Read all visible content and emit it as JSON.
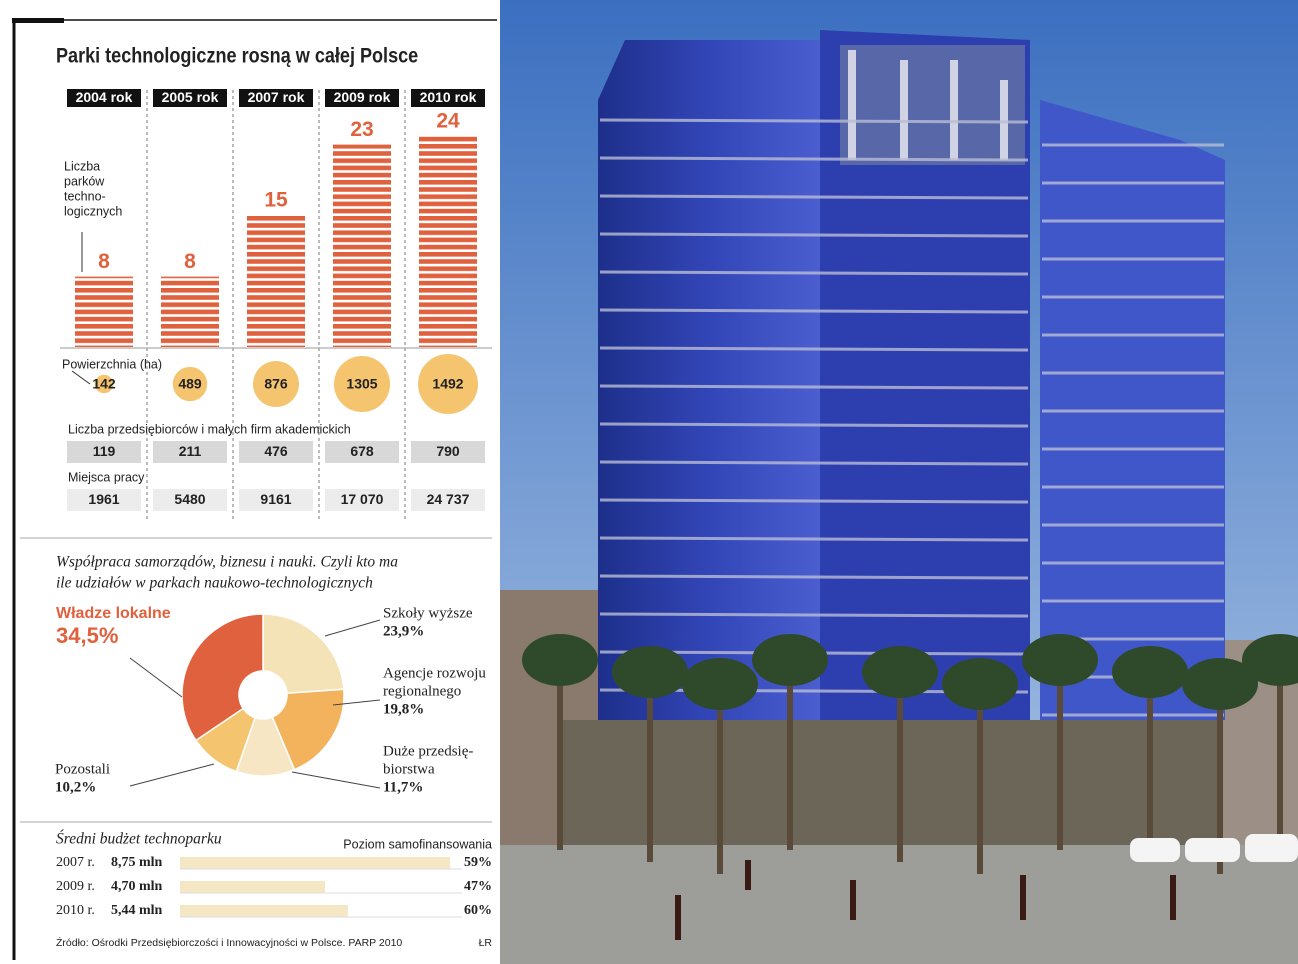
{
  "title": "Parki technologiczne rosną w całej Polsce",
  "chart_data": [
    {
      "type": "bar",
      "categories": [
        "2004 rok",
        "2005 rok",
        "2007 rok",
        "2009 rok",
        "2010 rok"
      ],
      "values": [
        8,
        8,
        15,
        23,
        24
      ],
      "color": "#e0613e",
      "annotation": [
        "Liczba",
        "parków",
        "techno-",
        "logicznych"
      ]
    },
    {
      "type": "pie",
      "subtitle": [
        "Współpraca samorządów, biznesu i nauki. Czyli kto ma",
        "ile udziałów w parkach naukowo-technologicznych"
      ],
      "categories": [
        [
          "Szkoły wyższe"
        ],
        [
          "Agencje rozwoju",
          "regionalnego"
        ],
        [
          "Duże przedsię-",
          "biorstwa"
        ],
        [
          "Pozostali"
        ],
        [
          "Władze lokalne"
        ]
      ],
      "values": [
        23.9,
        19.8,
        11.7,
        10.2,
        34.5
      ],
      "value_labels": [
        "23,9%",
        "19,8%",
        "11,7%",
        "10,2%",
        "34,5%"
      ],
      "colors": [
        "#f5e3b8",
        "#f2b35c",
        "#f7e6c4",
        "#f5c46f",
        "#e0613e"
      ]
    },
    {
      "type": "hbar",
      "title": "Średni budżet technoparku",
      "secondary_label": "Poziom samofinansowania",
      "categories": [
        "2007 r.",
        "2009 r.",
        "2010 r."
      ],
      "values": [
        8.75,
        4.7,
        5.44
      ],
      "value_labels": [
        "8,75 mln",
        "4,70 mln",
        "5,44 mln"
      ],
      "percent": [
        59,
        47,
        60
      ],
      "percent_labels": [
        "59%",
        "47%",
        "60%"
      ],
      "color": "#f5e6c4"
    }
  ],
  "rows": {
    "area": {
      "label": "Powierzchnia (ha)",
      "values": [
        142,
        489,
        876,
        1305,
        1492
      ],
      "color": "#f5c46f"
    },
    "firms": {
      "label": "Liczba przedsiębiorców i małych firm akademickich",
      "values": [
        119,
        211,
        476,
        678,
        790
      ]
    },
    "jobs": {
      "label": "Miejsca pracy",
      "values": [
        1961,
        5480,
        9161,
        17070,
        24737
      ],
      "value_labels": [
        "1961",
        "5480",
        "9161",
        "17 070",
        "24 737"
      ]
    }
  },
  "source": "Źródło: Ośrodki Przedsiębiorczości i Innowacyjności w Polsce. PARP 2010",
  "credit": "ŁR"
}
